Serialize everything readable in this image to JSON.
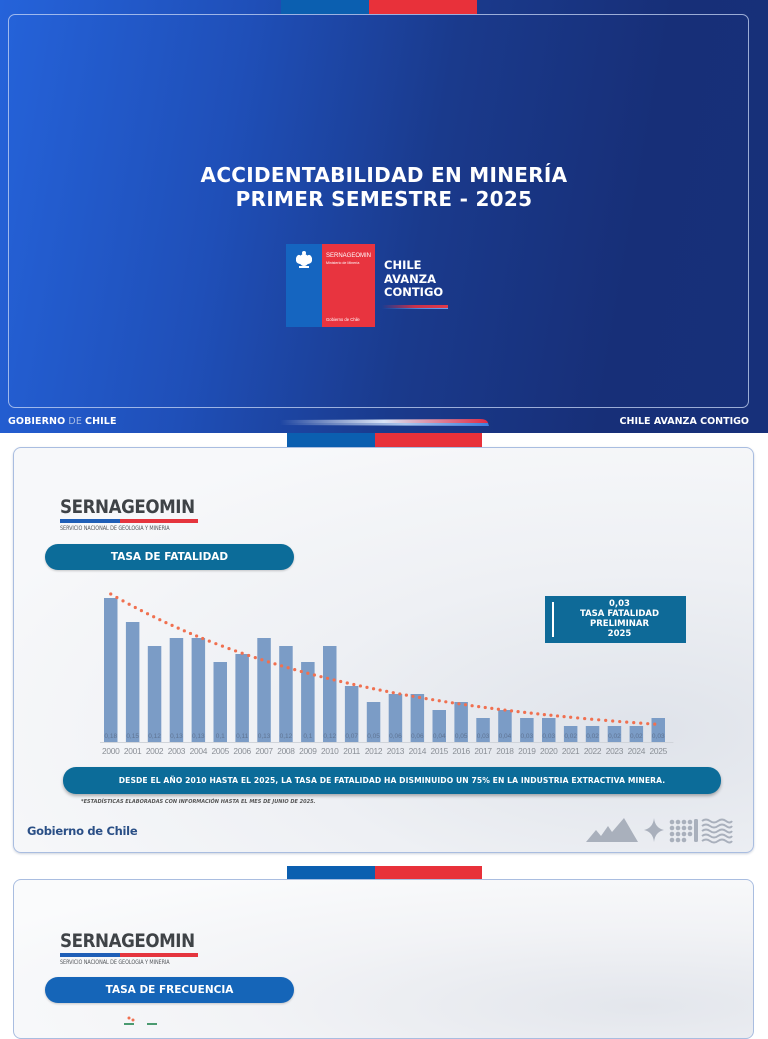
{
  "cover": {
    "title_line1": "ACCIDENTABILIDAD EN MINERÍA",
    "title_line2": "PRIMER SEMESTRE - 2025",
    "logo": {
      "agency": "SERNAGEOMIN",
      "ministry": "Ministerio de Minería",
      "government": "Gobierno de Chile"
    },
    "slogan": [
      "CHILE",
      "AVANZA",
      "CONTIGO"
    ],
    "footer_left_1": "GOBIERNO",
    "footer_left_2": " DE ",
    "footer_left_3": "CHILE",
    "footer_right": "CHILE AVANZA CONTIGO"
  },
  "fatality_slide": {
    "brand_name": "SERNAGEOMIN",
    "brand_subtitle": "SERVICIO NACIONAL DE GEOLOGÍA Y MINERÍA",
    "section_title": "TASA DE FATALIDAD",
    "callout": [
      "0,03",
      "TASA FATALIDAD",
      "PRELIMINAR",
      "2025"
    ],
    "banner": "DESDE EL AÑO 2010 HASTA EL 2025, LA TASA DE FATALIDAD HA DISMINUIDO UN 75% EN LA INDUSTRIA EXTRACTIVA MINERA.",
    "footnote": "*ESTADÍSTICAS ELABORADAS CON INFORMACIÓN HASTA EL MES DE JUNIO DE 2025.",
    "footer_brand": "Gobierno de Chile"
  },
  "frequency_slide": {
    "brand_name": "SERNAGEOMIN",
    "brand_subtitle": "SERVICIO NACIONAL DE GEOLOGÍA Y MINERÍA",
    "section_title": "TASA DE FRECUENCIA"
  },
  "colors": {
    "flag_blue": "#0b5fb0",
    "flag_red": "#e8313a",
    "bar": "#7b9cc6",
    "trend": "#f07050",
    "pill_teal": "#0c6c99",
    "pill_blue": "#1565b8"
  },
  "chart_data": {
    "type": "bar",
    "title": "TASA DE FATALIDAD",
    "xlabel": "",
    "ylabel": "",
    "categories": [
      "2000",
      "2001",
      "2002",
      "2003",
      "2004",
      "2005",
      "2006",
      "2007",
      "2008",
      "2009",
      "2010",
      "2011",
      "2012",
      "2013",
      "2014",
      "2015",
      "2016",
      "2017",
      "2018",
      "2019",
      "2020",
      "2021",
      "2022",
      "2023",
      "2024",
      "2025"
    ],
    "values": [
      0.18,
      0.15,
      0.12,
      0.13,
      0.13,
      0.1,
      0.11,
      0.13,
      0.12,
      0.1,
      0.12,
      0.07,
      0.05,
      0.06,
      0.06,
      0.04,
      0.05,
      0.03,
      0.04,
      0.03,
      0.03,
      0.02,
      0.02,
      0.02,
      0.02,
      0.03
    ],
    "value_labels": [
      "0,18",
      "0,15",
      "0,12",
      "0,13",
      "0,13",
      "0,1",
      "0,11",
      "0,13",
      "0,12",
      "0,1",
      "0,12",
      "0,07",
      "0,05",
      "0,06",
      "0,06",
      "0,04",
      "0,05",
      "0,03",
      "0,04",
      "0,03",
      "0,03",
      "0,02",
      "0,02",
      "0,02",
      "0,02",
      "0,03"
    ],
    "trendline": {
      "type": "exponential",
      "style": "dotted",
      "start_value": 0.185,
      "end_value": 0.022
    },
    "ylim": [
      0,
      0.19
    ],
    "grid": false,
    "legend": "none"
  }
}
